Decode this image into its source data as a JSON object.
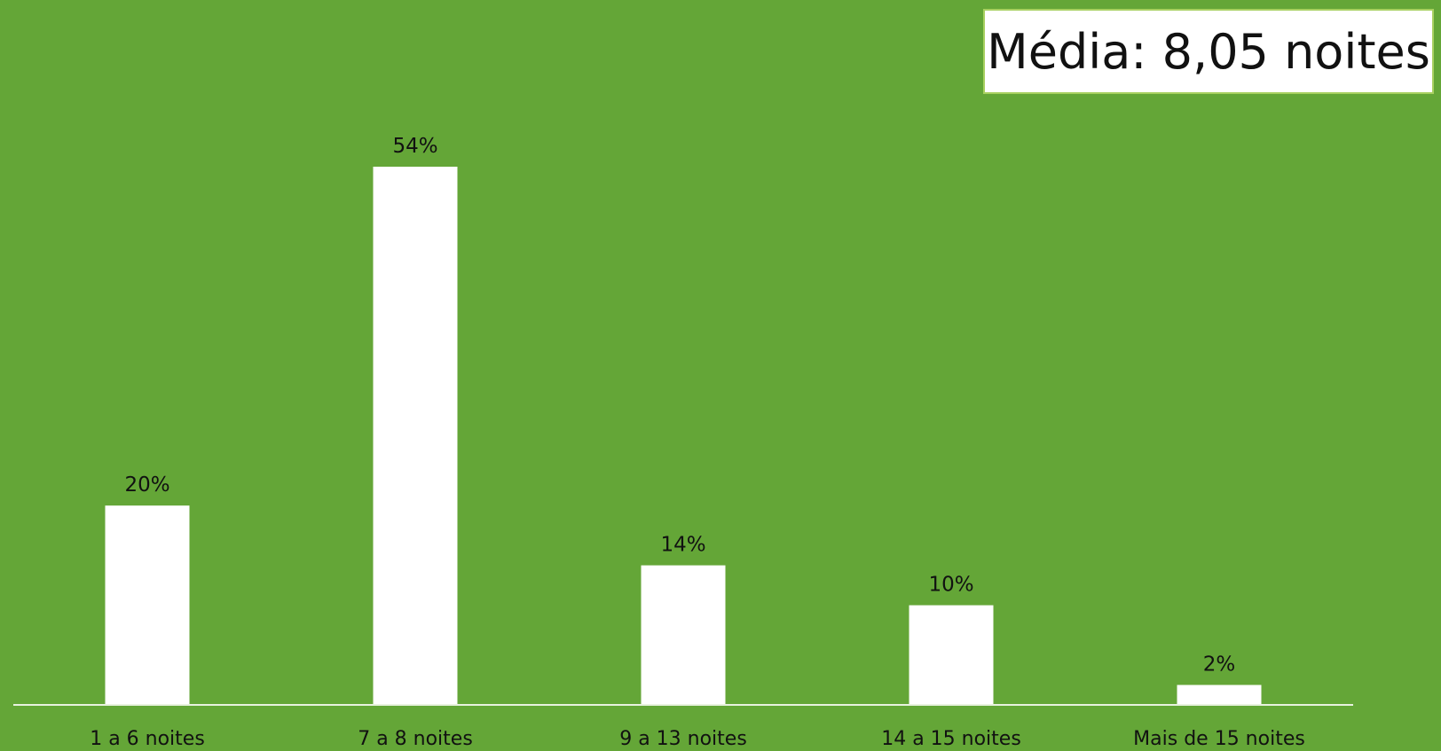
{
  "colors": {
    "background": "#64a637",
    "bar": "#ffffff",
    "text": "#111111",
    "axis": "#e8f2df"
  },
  "annotation": {
    "average_label": "Média: 8,05 noites"
  },
  "chart_data": {
    "type": "bar",
    "categories": [
      "1 a 6 noites",
      "7 a 8 noites",
      "9 a 13 noites",
      "14 a 15 noites",
      "Mais de 15 noites"
    ],
    "values": [
      20,
      54,
      14,
      10,
      2
    ],
    "data_labels": [
      "20%",
      "54%",
      "14%",
      "10%",
      "2%"
    ],
    "title": "",
    "xlabel": "",
    "ylabel": "",
    "ylim": [
      0,
      60
    ],
    "grid": false,
    "legend": "none"
  }
}
